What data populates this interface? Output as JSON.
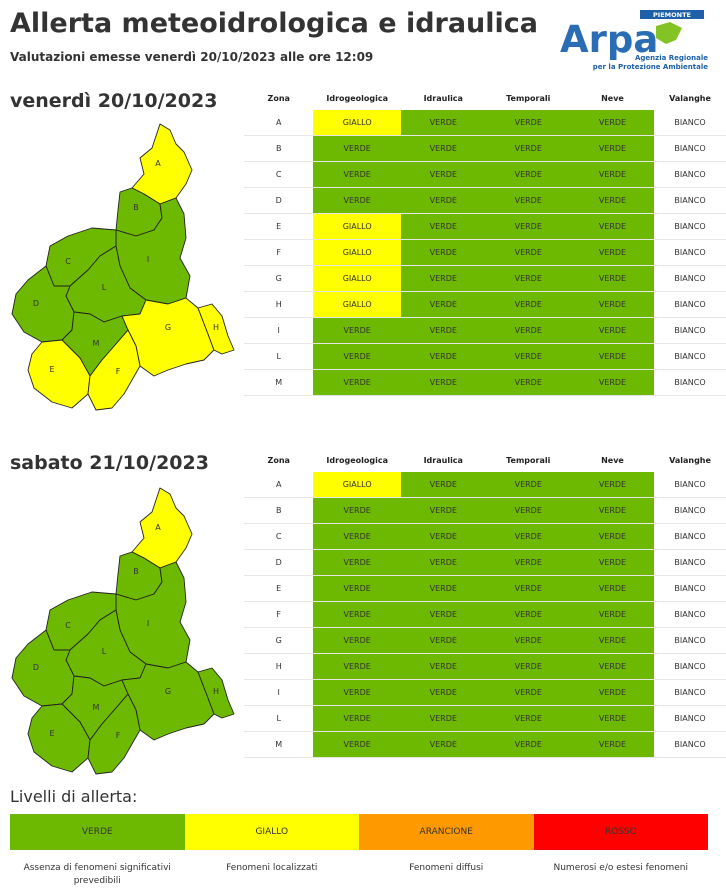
{
  "header": {
    "title": "Allerta meteoidrologica e idraulica",
    "subtitle": "Valutazioni emesse venerdì 20/10/2023 alle ore 12:09"
  },
  "logo": {
    "top_label": "PIEMONTE",
    "name": "Arpa",
    "line1": "Agenzia Regionale",
    "line2": "per la Protezione Ambientale"
  },
  "columns": [
    "Zona",
    "Idrogeologica",
    "Idraulica",
    "Temporali",
    "Neve",
    "Valanghe"
  ],
  "colors": {
    "VERDE": "#6db800",
    "GIALLO": "#ffff00",
    "ARANCIONE": "#ff9900",
    "ROSSO": "#ff0000",
    "BIANCO": "#ffffff"
  },
  "days": [
    {
      "title": "venerdì 20/10/2023",
      "rows": [
        {
          "zone": "A",
          "idro": "GIALLO",
          "idra": "VERDE",
          "temp": "VERDE",
          "neve": "VERDE",
          "val": "BIANCO"
        },
        {
          "zone": "B",
          "idro": "VERDE",
          "idra": "VERDE",
          "temp": "VERDE",
          "neve": "VERDE",
          "val": "BIANCO"
        },
        {
          "zone": "C",
          "idro": "VERDE",
          "idra": "VERDE",
          "temp": "VERDE",
          "neve": "VERDE",
          "val": "BIANCO"
        },
        {
          "zone": "D",
          "idro": "VERDE",
          "idra": "VERDE",
          "temp": "VERDE",
          "neve": "VERDE",
          "val": "BIANCO"
        },
        {
          "zone": "E",
          "idro": "GIALLO",
          "idra": "VERDE",
          "temp": "VERDE",
          "neve": "VERDE",
          "val": "BIANCO"
        },
        {
          "zone": "F",
          "idro": "GIALLO",
          "idra": "VERDE",
          "temp": "VERDE",
          "neve": "VERDE",
          "val": "BIANCO"
        },
        {
          "zone": "G",
          "idro": "GIALLO",
          "idra": "VERDE",
          "temp": "VERDE",
          "neve": "VERDE",
          "val": "BIANCO"
        },
        {
          "zone": "H",
          "idro": "GIALLO",
          "idra": "VERDE",
          "temp": "VERDE",
          "neve": "VERDE",
          "val": "BIANCO"
        },
        {
          "zone": "I",
          "idro": "VERDE",
          "idra": "VERDE",
          "temp": "VERDE",
          "neve": "VERDE",
          "val": "BIANCO"
        },
        {
          "zone": "L",
          "idro": "VERDE",
          "idra": "VERDE",
          "temp": "VERDE",
          "neve": "VERDE",
          "val": "BIANCO"
        },
        {
          "zone": "M",
          "idro": "VERDE",
          "idra": "VERDE",
          "temp": "VERDE",
          "neve": "VERDE",
          "val": "BIANCO"
        }
      ],
      "map_zone_levels": {
        "A": "GIALLO",
        "B": "VERDE",
        "C": "VERDE",
        "D": "VERDE",
        "E": "GIALLO",
        "F": "GIALLO",
        "G": "GIALLO",
        "H": "GIALLO",
        "I": "VERDE",
        "L": "VERDE",
        "M": "VERDE"
      }
    },
    {
      "title": "sabato 21/10/2023",
      "rows": [
        {
          "zone": "A",
          "idro": "GIALLO",
          "idra": "VERDE",
          "temp": "VERDE",
          "neve": "VERDE",
          "val": "BIANCO"
        },
        {
          "zone": "B",
          "idro": "VERDE",
          "idra": "VERDE",
          "temp": "VERDE",
          "neve": "VERDE",
          "val": "BIANCO"
        },
        {
          "zone": "C",
          "idro": "VERDE",
          "idra": "VERDE",
          "temp": "VERDE",
          "neve": "VERDE",
          "val": "BIANCO"
        },
        {
          "zone": "D",
          "idro": "VERDE",
          "idra": "VERDE",
          "temp": "VERDE",
          "neve": "VERDE",
          "val": "BIANCO"
        },
        {
          "zone": "E",
          "idro": "VERDE",
          "idra": "VERDE",
          "temp": "VERDE",
          "neve": "VERDE",
          "val": "BIANCO"
        },
        {
          "zone": "F",
          "idro": "VERDE",
          "idra": "VERDE",
          "temp": "VERDE",
          "neve": "VERDE",
          "val": "BIANCO"
        },
        {
          "zone": "G",
          "idro": "VERDE",
          "idra": "VERDE",
          "temp": "VERDE",
          "neve": "VERDE",
          "val": "BIANCO"
        },
        {
          "zone": "H",
          "idro": "VERDE",
          "idra": "VERDE",
          "temp": "VERDE",
          "neve": "VERDE",
          "val": "BIANCO"
        },
        {
          "zone": "I",
          "idro": "VERDE",
          "idra": "VERDE",
          "temp": "VERDE",
          "neve": "VERDE",
          "val": "BIANCO"
        },
        {
          "zone": "L",
          "idro": "VERDE",
          "idra": "VERDE",
          "temp": "VERDE",
          "neve": "VERDE",
          "val": "BIANCO"
        },
        {
          "zone": "M",
          "idro": "VERDE",
          "idra": "VERDE",
          "temp": "VERDE",
          "neve": "VERDE",
          "val": "BIANCO"
        }
      ],
      "map_zone_levels": {
        "A": "GIALLO",
        "B": "VERDE",
        "C": "VERDE",
        "D": "VERDE",
        "E": "VERDE",
        "F": "VERDE",
        "G": "VERDE",
        "H": "VERDE",
        "I": "VERDE",
        "L": "VERDE",
        "M": "VERDE"
      }
    }
  ],
  "legend": {
    "title": "Livelli di allerta:",
    "levels": [
      {
        "label": "VERDE",
        "color": "#6db800",
        "description": "Assenza di fenomeni significativi prevedibili"
      },
      {
        "label": "GIALLO",
        "color": "#ffff00",
        "description": "Fenomeni localizzati"
      },
      {
        "label": "ARANCIONE",
        "color": "#ff9900",
        "description": "Fenomeni diffusi"
      },
      {
        "label": "ROSSO",
        "color": "#ff0000",
        "description": "Numerosi e/o estesi fenomeni"
      }
    ]
  }
}
